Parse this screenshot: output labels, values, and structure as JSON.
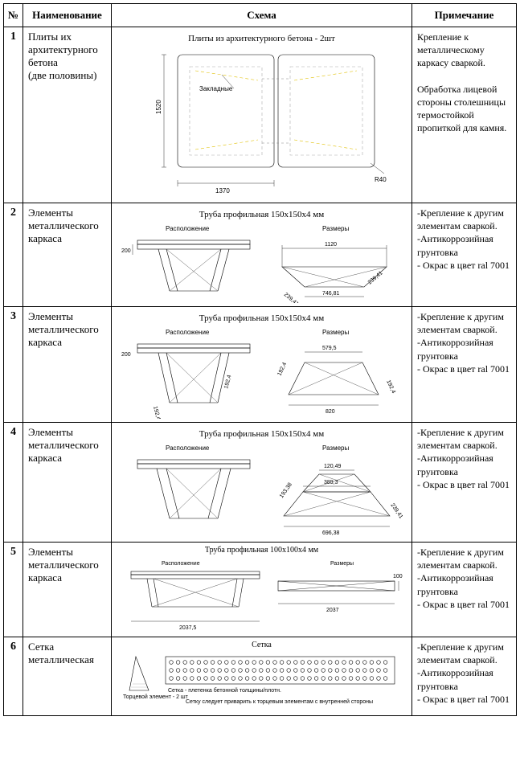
{
  "headers": {
    "num": "№",
    "name": "Наименование",
    "schema": "Схема",
    "note": "Примечание"
  },
  "rows": [
    {
      "num": "1",
      "name": "Плиты их архитектурного бетона\n(две половины)",
      "note": "Крепление к металлическому каркасу сваркой.\n\nОбработка лицевой стороны столешницы термостойкой пропиткой для камня.",
      "fig": {
        "title": "Плиты из архитектурного бетона - 2шт",
        "width": "1370",
        "height": "1520",
        "radius": "R40",
        "inset_label": "Закладные"
      }
    },
    {
      "num": "2",
      "name": "Элементы металлического каркаса",
      "note": "-Крепление к другим элементам сваркой.\n-Антикоррозийная грунтовка\n- Окрас в цвет ral 7001",
      "fig": {
        "title": "Труба профильная 150x150x4 мм",
        "left_cap": "Расположение",
        "right_cap": "Размеры",
        "dim_top": "1120",
        "dim_bot": "746,81",
        "dim_side": "239,41",
        "dim_h": "200"
      }
    },
    {
      "num": "3",
      "name": "Элементы металлического каркаса",
      "note": "-Крепление к другим элементам сваркой.\n-Антикоррозийная грунтовка\n- Окрас в цвет ral 7001",
      "fig": {
        "title": "Труба профильная 150x150x4 мм",
        "left_cap": "Расположение",
        "right_cap": "Размеры",
        "dim_top": "579,5",
        "dim_bot": "820",
        "dim_side": "192,4",
        "dim_h": "200",
        "dim_diag": "192,4"
      }
    },
    {
      "num": "4",
      "name": "Элементы металлического каркаса",
      "note": "-Крепление к другим элементам сваркой.\n-Антикоррозийная грунтовка\n- Окрас в цвет ral 7001",
      "fig": {
        "title": "Труба профильная 150x150x4 мм",
        "left_cap": "Расположение",
        "right_cap": "Размеры",
        "dim_top": "120,49",
        "dim_mid": "389,3",
        "dim_bot": "696,38",
        "dim_sideL": "193,38",
        "dim_sideR": "239,41"
      }
    },
    {
      "num": "5",
      "name": "Элементы металлического каркаса",
      "note": "-Крепление к другим элементам сваркой.\n-Антикоррозийная грунтовка\n- Окрас в цвет ral 7001",
      "fig": {
        "title": "Труба профильная 100x100x4 мм",
        "left_cap": "Расположение",
        "right_cap": "Размеры",
        "dim_len": "2037,5",
        "dim_len2": "2037",
        "dim_h": "100"
      }
    },
    {
      "num": "6",
      "name": "Сетка металлическая",
      "note": "-Крепление к другим элементам сваркой.\n-Антикоррозийная грунтовка\n- Окрас в цвет ral 7001",
      "fig": {
        "title": "Сетка",
        "footnote": "Сетку следует приварить к торцевым элементам с внутренней стороны",
        "side_label": "Торцевой элемент - 2 шт",
        "hatch_label": "Сетка - плетенка бетонной толщины/плотн."
      }
    }
  ]
}
